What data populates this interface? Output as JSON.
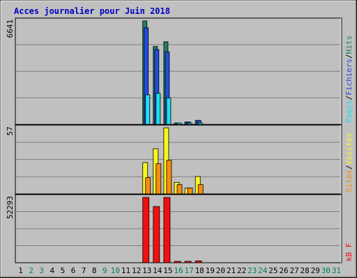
{
  "chart_data": {
    "type": "bar",
    "title": "Acces journalier pour Juin 2018",
    "days": [
      "1",
      "2",
      "3",
      "4",
      "5",
      "6",
      "7",
      "8",
      "9",
      "10",
      "11",
      "12",
      "13",
      "14",
      "15",
      "16",
      "17",
      "18",
      "19",
      "20",
      "21",
      "22",
      "23",
      "24",
      "25",
      "26",
      "27",
      "28",
      "29",
      "30",
      "31"
    ],
    "weekend_days": [
      "2",
      "3",
      "9",
      "10",
      "16",
      "17",
      "23",
      "24",
      "30",
      "31"
    ],
    "colors": {
      "title": "#0000c0",
      "weekday": "#000000",
      "weekend": "#00804d",
      "hits": "#1f8060",
      "files": "#1f4fe0",
      "pages": "#20e0f0",
      "visits": "#f8f820",
      "sites": "#f88c10",
      "kb": "#f01010",
      "background": "#c0c0c0"
    },
    "panels": [
      {
        "name": "hits-files-pages",
        "ymax_label": "6641",
        "ymax": 6641,
        "legend": [
          {
            "label": "Pages",
            "color": "#20e0f0"
          },
          {
            "sep": "/"
          },
          {
            "label": "Fichiers",
            "color": "#1f4fe0"
          },
          {
            "sep": "/"
          },
          {
            "label": "Hits",
            "color": "#1f8060"
          }
        ],
        "series": [
          {
            "name": "Hits",
            "color": "#1f8060",
            "values": {
              "13": 6641,
              "14": 5000,
              "15": 5300,
              "16": 80,
              "17": 160,
              "18": 260
            }
          },
          {
            "name": "Fichiers",
            "color": "#1f4fe0",
            "values": {
              "13": 6200,
              "14": 4800,
              "15": 4650,
              "16": 70,
              "17": 150,
              "18": 250
            }
          },
          {
            "name": "Pages",
            "color": "#20e0f0",
            "values": {
              "13": 1900,
              "14": 2000,
              "15": 1700,
              "16": 40,
              "17": 60,
              "18": 100
            }
          }
        ]
      },
      {
        "name": "visits-sites",
        "ymax_label": "57",
        "ymax": 57,
        "legend": [
          {
            "label": "Sites",
            "color": "#f88c10"
          },
          {
            "sep": "/"
          },
          {
            "label": "Visites",
            "color": "#f8f820"
          }
        ],
        "series": [
          {
            "name": "Visites",
            "color": "#f8f820",
            "values": {
              "13": 27,
              "14": 39,
              "15": 57,
              "16": 10,
              "17": 5,
              "18": 15
            }
          },
          {
            "name": "Sites",
            "color": "#f88c10",
            "values": {
              "13": 14,
              "14": 26,
              "15": 29,
              "16": 8,
              "17": 5,
              "18": 8
            }
          }
        ]
      },
      {
        "name": "kb",
        "ymax_label": "52293",
        "ymax": 52293,
        "legend": [
          {
            "label": "kB F",
            "color": "#f01010"
          }
        ],
        "series": [
          {
            "name": "kB F",
            "color": "#f01010",
            "values": {
              "13": 52293,
              "14": 45000,
              "15": 52293,
              "16": 600,
              "17": 900,
              "18": 1500
            }
          }
        ]
      }
    ]
  }
}
